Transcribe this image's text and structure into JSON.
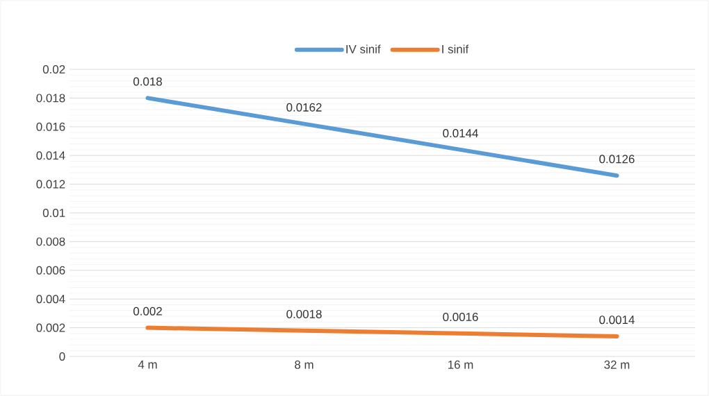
{
  "chart_data": {
    "type": "line",
    "categories": [
      "4 m",
      "8 m",
      "16 m",
      "32 m"
    ],
    "series": [
      {
        "name": "IV sinif",
        "color": "#5b9bd5",
        "values": [
          0.018,
          0.0162,
          0.0144,
          0.0126
        ]
      },
      {
        "name": "I sinif",
        "color": "#ed7d31",
        "values": [
          0.002,
          0.0018,
          0.0016,
          0.0014
        ]
      }
    ],
    "ylim": [
      0,
      0.02
    ],
    "yticks": [
      0,
      0.002,
      0.004,
      0.006,
      0.008,
      0.01,
      0.012,
      0.014,
      0.016,
      0.018,
      0.02
    ],
    "grid": "y",
    "legend": "top",
    "data_labels": true,
    "marker": "none",
    "line_style": "solid"
  }
}
